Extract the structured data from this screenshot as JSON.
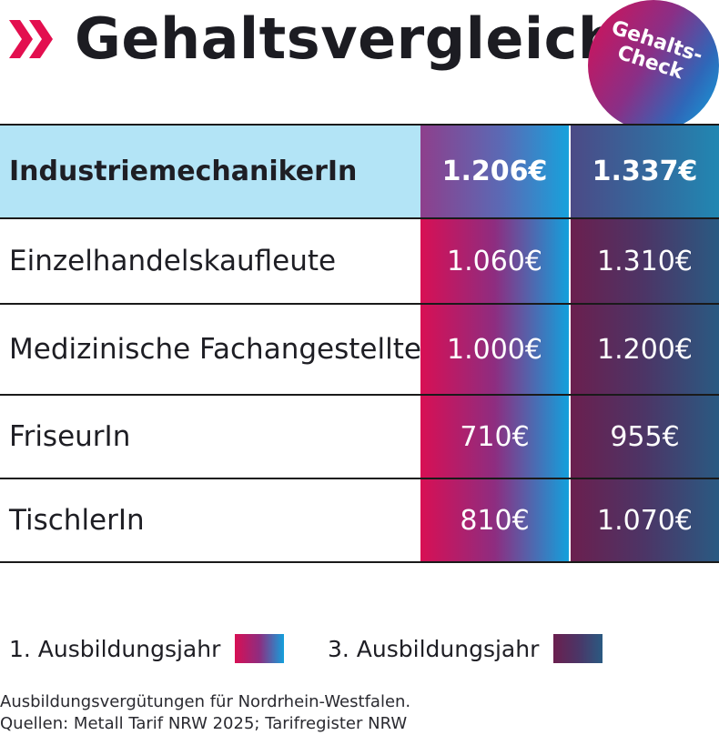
{
  "header": {
    "title": "Gehaltsvergleich",
    "badge_line1": "Gehalts-",
    "badge_line2": "Check"
  },
  "colors": {
    "chevron": "#e30f4f",
    "highlight_row": "#b3e4f6",
    "year1_gradient": [
      "#d80f54",
      "#8e2d80",
      "#13a0dc"
    ],
    "year3_gradient": [
      "#6b1f4f",
      "#4c3566",
      "#2a5a82"
    ]
  },
  "chart_data": {
    "type": "table",
    "title": "Gehaltsvergleich",
    "categories": [
      "IndustriemechanikerIn",
      "Einzelhandelskaufleute",
      "Medizinische Fachangestellte",
      "FriseurIn",
      "TischlerIn"
    ],
    "series": [
      {
        "name": "1. Ausbildungsjahr",
        "values": [
          1206,
          1060,
          1000,
          710,
          810
        ]
      },
      {
        "name": "3. Ausbildungsjahr",
        "values": [
          1337,
          1310,
          1200,
          955,
          1070
        ]
      }
    ],
    "rows": [
      {
        "label": "IndustriemechanikerIn",
        "year1": "1.206€",
        "year3": "1.337€",
        "highlighted": true
      },
      {
        "label": "Einzelhandelskaufleute",
        "year1": "1.060€",
        "year3": "1.310€",
        "highlighted": false
      },
      {
        "label": "Medizinische Fachangestellte",
        "year1": "1.000€",
        "year3": "1.200€",
        "highlighted": false
      },
      {
        "label": "FriseurIn",
        "year1": "710€",
        "year3": "955€",
        "highlighted": false
      },
      {
        "label": "TischlerIn",
        "year1": "810€",
        "year3": "1.070€",
        "highlighted": false
      }
    ]
  },
  "legend": {
    "year1_label": "1. Ausbildungsjahr",
    "year3_label": "3. Ausbildungsjahr"
  },
  "footer": {
    "line1": "Ausbildungsvergütungen für Nordrhein-Westfalen.",
    "line2": "Quellen: Metall Tarif NRW 2025; Tarifregister NRW"
  }
}
